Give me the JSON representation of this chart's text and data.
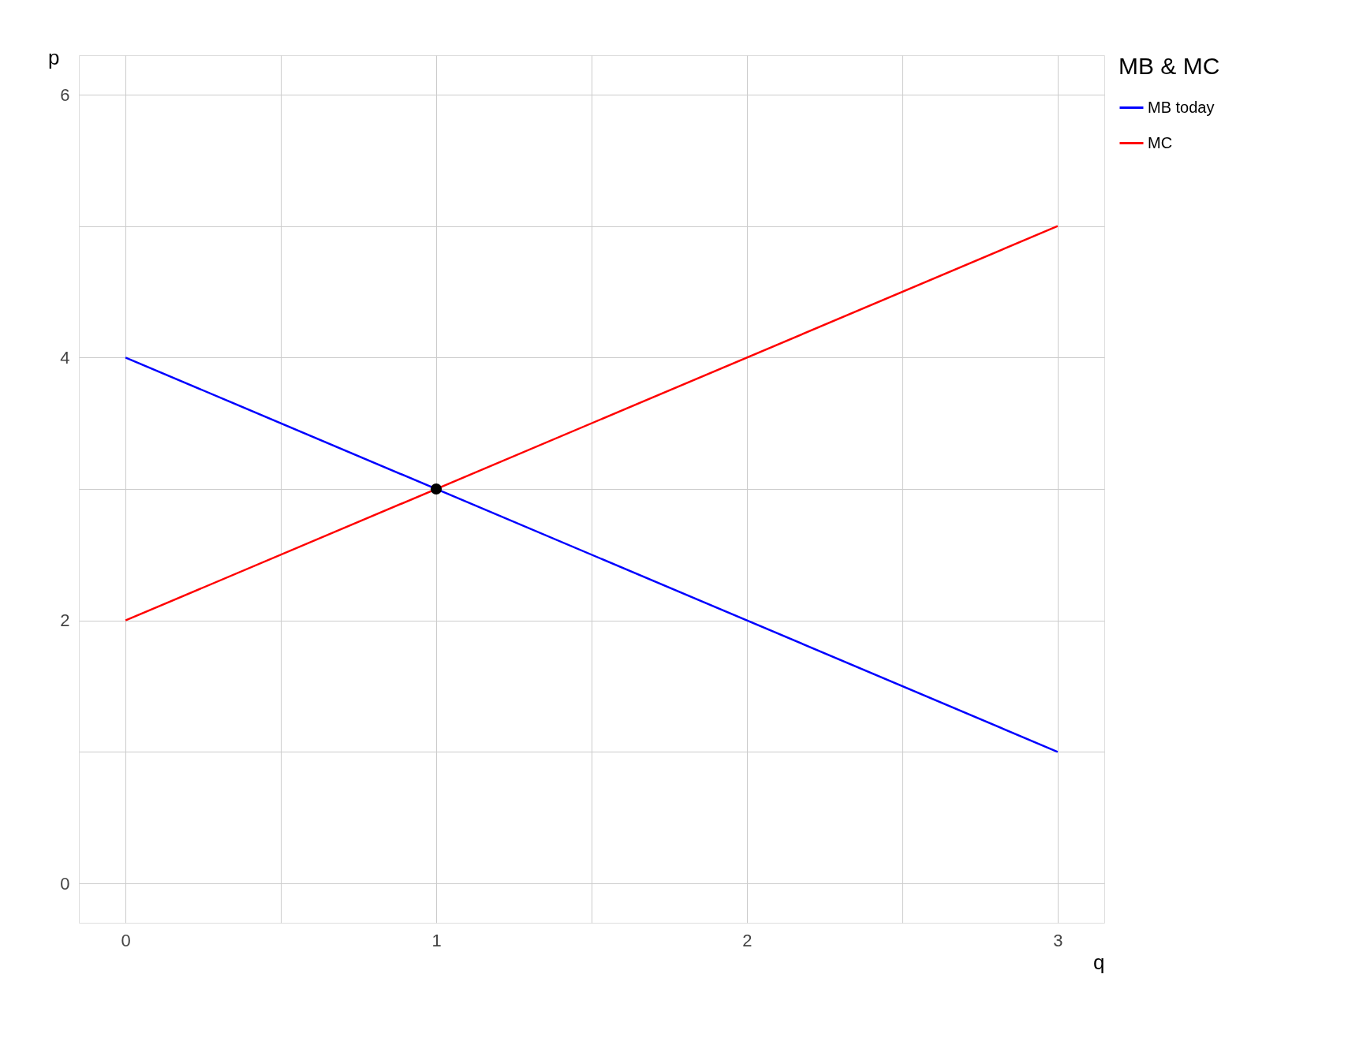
{
  "chart_data": {
    "type": "line",
    "xlabel": "q",
    "ylabel": "p",
    "legend_title": "MB & MC",
    "legend": "right",
    "grid": true,
    "xlim": [
      -0.15,
      3.15
    ],
    "ylim": [
      -0.3,
      6.3
    ],
    "xticks": [
      0,
      {
        "value": 0.5,
        "label": null
      },
      1,
      {
        "value": 1.5,
        "label": null
      },
      2,
      {
        "value": 2.5,
        "label": null
      },
      3
    ],
    "yticks": [
      0,
      {
        "value": 1,
        "label": null
      },
      2,
      {
        "value": 3,
        "label": null
      },
      4,
      {
        "value": 5,
        "label": null
      },
      6
    ],
    "series": [
      {
        "name": "MB today",
        "color": "#0000ff",
        "x": [
          0,
          3
        ],
        "values": [
          4,
          1
        ]
      },
      {
        "name": "MC",
        "color": "#ff0000",
        "x": [
          0,
          3
        ],
        "values": [
          2,
          5
        ]
      },
      {
        "type": "scatter",
        "marker": "circle",
        "color": "#000000",
        "x": [
          1
        ],
        "values": [
          3
        ]
      }
    ]
  }
}
